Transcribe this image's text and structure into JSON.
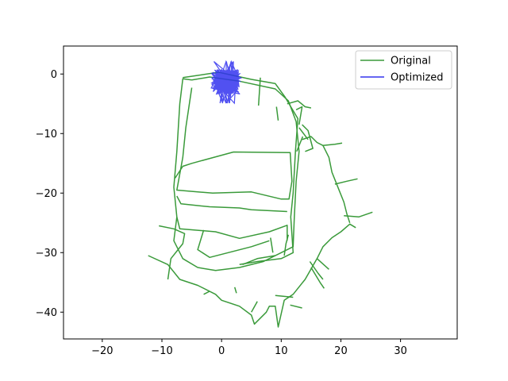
{
  "chart_data": {
    "type": "line",
    "title": "",
    "xlabel": "",
    "ylabel": "",
    "xlim": [
      -26.5,
      39.5
    ],
    "ylim": [
      -44.5,
      4.7
    ],
    "xticks": [
      -20,
      -10,
      0,
      10,
      20,
      30
    ],
    "yticks": [
      0,
      -10,
      -20,
      -30,
      -40
    ],
    "grid": false,
    "legend_position": "top-right",
    "series": [
      {
        "name": "Original",
        "color": "#3a9a3a",
        "segments": [
          [
            [
              -5,
              -1
            ],
            [
              -6.5,
              -0.8
            ],
            [
              -7,
              -5
            ],
            [
              -7.5,
              -13
            ],
            [
              -8,
              -19
            ],
            [
              -7.5,
              -24
            ],
            [
              -8,
              -28
            ],
            [
              -6.5,
              -31
            ],
            [
              -4,
              -32.5
            ],
            [
              -1,
              -33
            ],
            [
              3,
              -32.5
            ],
            [
              7,
              -31.5
            ],
            [
              10,
              -30
            ],
            [
              12,
              -29
            ],
            [
              12.2,
              -24
            ],
            [
              12.5,
              -18
            ],
            [
              13,
              -13
            ],
            [
              12.5,
              -8
            ],
            [
              11.2,
              -4.5
            ],
            [
              9,
              -2.5
            ],
            [
              3,
              -1.2
            ],
            [
              -2,
              -0.5
            ],
            [
              -5,
              -1
            ]
          ],
          [
            [
              -6.5,
              -0.6
            ],
            [
              -0.5,
              0.3
            ],
            [
              5,
              -0.9
            ],
            [
              9,
              -1.6
            ],
            [
              10.6,
              -3.8
            ],
            [
              12.8,
              -7.5
            ],
            [
              12.4,
              -12.8
            ],
            [
              12,
              -20
            ],
            [
              11.6,
              -24
            ],
            [
              12,
              -30
            ],
            [
              10,
              -31
            ],
            [
              6,
              -31.5
            ],
            [
              3,
              -32
            ]
          ],
          [
            [
              6.5,
              -0.6
            ],
            [
              6.2,
              -5.3
            ]
          ],
          [
            [
              9.2,
              -5.5
            ],
            [
              9.5,
              -7.8
            ]
          ],
          [
            [
              -5,
              -2.3
            ],
            [
              -6,
              -9
            ],
            [
              -6.5,
              -14
            ],
            [
              -7.5,
              -19.5
            ],
            [
              -1.5,
              -20
            ],
            [
              5,
              -19.8
            ],
            [
              10,
              -21
            ],
            [
              11.3,
              -21
            ],
            [
              11.8,
              -18
            ],
            [
              11.5,
              -13.2
            ],
            [
              2,
              -13.1
            ],
            [
              -5,
              -15
            ],
            [
              -6.5,
              -15.5
            ],
            [
              -7.8,
              -17.5
            ]
          ],
          [
            [
              -7.5,
              -20.5
            ],
            [
              -6.8,
              -21.8
            ],
            [
              -2,
              -22.3
            ],
            [
              3,
              -22.5
            ],
            [
              5,
              -22.8
            ],
            [
              11,
              -23.1
            ]
          ],
          [
            [
              -7.5,
              -24
            ],
            [
              -7,
              -26
            ],
            [
              -1,
              -26.5
            ],
            [
              3,
              -27.6
            ],
            [
              8,
              -26.5
            ],
            [
              11,
              -25.4
            ],
            [
              11,
              -28
            ]
          ],
          [
            [
              -10.5,
              -25.5
            ],
            [
              -8,
              -26
            ],
            [
              -6.2,
              -26.8
            ],
            [
              -6.5,
              -28.5
            ],
            [
              -8.5,
              -31
            ],
            [
              -9,
              -34.5
            ]
          ],
          [
            [
              -12.3,
              -30.5
            ],
            [
              -9,
              -32
            ],
            [
              -7,
              -34.5
            ],
            [
              -4,
              -35.5
            ],
            [
              -1,
              -37
            ],
            [
              0,
              -38
            ],
            [
              3,
              -39
            ],
            [
              5,
              -40.5
            ],
            [
              5.5,
              -42
            ],
            [
              7.5,
              -40
            ],
            [
              8,
              -39
            ],
            [
              9,
              -39
            ],
            [
              9.5,
              -42.5
            ],
            [
              10.5,
              -38
            ],
            [
              12,
              -37
            ],
            [
              14,
              -34.5
            ],
            [
              16,
              -31
            ],
            [
              17,
              -29
            ],
            [
              18.5,
              -27.5
            ],
            [
              20,
              -26.5
            ],
            [
              21.5,
              -25.2
            ],
            [
              22.5,
              -25.8
            ]
          ],
          [
            [
              -3,
              -26.2
            ],
            [
              -4,
              -29.5
            ],
            [
              -2,
              -30.8
            ],
            [
              5,
              -29
            ],
            [
              8,
              -28
            ]
          ],
          [
            [
              3.5,
              -32
            ],
            [
              6,
              -31
            ],
            [
              9,
              -30.5
            ]
          ],
          [
            [
              8.2,
              -27.5
            ],
            [
              8.6,
              -30
            ]
          ],
          [
            [
              10.5,
              -30.5
            ],
            [
              10.8,
              -28.5
            ],
            [
              11.2,
              -27
            ]
          ],
          [
            [
              -3,
              -37
            ],
            [
              -2,
              -36.5
            ]
          ],
          [
            [
              2.2,
              -35.8
            ],
            [
              2.5,
              -36.8
            ]
          ],
          [
            [
              9,
              -37.2
            ],
            [
              12,
              -37.5
            ]
          ],
          [
            [
              11.5,
              -38.8
            ],
            [
              13.5,
              -39.3
            ]
          ],
          [
            [
              6,
              -38.2
            ],
            [
              5,
              -40
            ]
          ],
          [
            [
              14.8,
              -31.5
            ],
            [
              16.2,
              -33.5
            ],
            [
              17,
              -34.5
            ]
          ],
          [
            [
              15,
              -32.5
            ],
            [
              16.5,
              -35
            ],
            [
              17.2,
              -36
            ]
          ],
          [
            [
              16,
              -31
            ],
            [
              18,
              -32.8
            ]
          ],
          [
            [
              13.5,
              -8.5
            ],
            [
              14.5,
              -9.5
            ],
            [
              15.3,
              -12.5
            ],
            [
              14,
              -13
            ]
          ],
          [
            [
              13,
              -9
            ],
            [
              14.5,
              -11
            ]
          ],
          [
            [
              12.5,
              -6
            ],
            [
              13.5,
              -5.5
            ],
            [
              13,
              -8.5
            ]
          ],
          [
            [
              11,
              -5
            ],
            [
              12.8,
              -4.5
            ],
            [
              14,
              -5.5
            ],
            [
              15,
              -5.7
            ]
          ],
          [
            [
              13.5,
              -11
            ],
            [
              15,
              -10.5
            ],
            [
              16,
              -11.5
            ],
            [
              17,
              -12
            ],
            [
              19,
              -11.8
            ],
            [
              20.2,
              -11.6
            ]
          ],
          [
            [
              17,
              -12
            ],
            [
              18,
              -14
            ],
            [
              18.5,
              -16.5
            ],
            [
              19.5,
              -19
            ],
            [
              20.5,
              -21.5
            ],
            [
              21,
              -23.5
            ],
            [
              21.5,
              -25
            ]
          ],
          [
            [
              19,
              -18.5
            ],
            [
              21,
              -18
            ],
            [
              22.8,
              -17.6
            ]
          ],
          [
            [
              20.5,
              -23.8
            ],
            [
              23,
              -24
            ],
            [
              25.3,
              -23.2
            ]
          ],
          [
            [
              12.6,
              -13
            ],
            [
              13.2,
              -11.5
            ],
            [
              13.6,
              -10.5
            ]
          ]
        ]
      },
      {
        "name": "Optimized",
        "color": "#3333ee",
        "segments": []
      }
    ]
  }
}
